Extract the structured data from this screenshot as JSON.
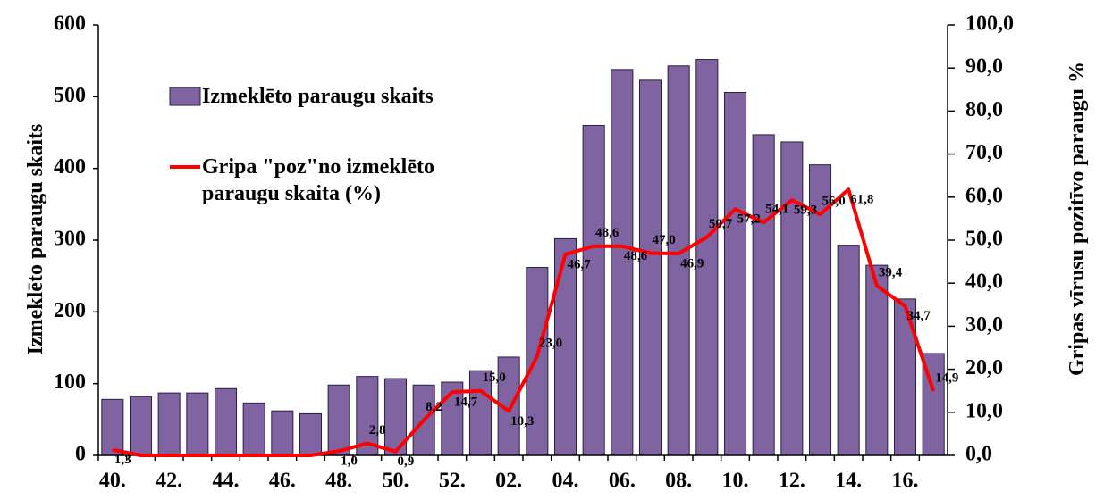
{
  "chart_data": {
    "type": "bar_line",
    "categories": [
      "40.",
      null,
      "42.",
      null,
      "44.",
      null,
      "46.",
      null,
      "48.",
      null,
      "50.",
      null,
      "52.",
      null,
      "02.",
      null,
      "04.",
      null,
      "06.",
      null,
      "08.",
      null,
      "10.",
      null,
      "12.",
      null,
      "14.",
      null,
      "16.",
      null
    ],
    "series": [
      {
        "name": "Izmeklēto paraugu skaits",
        "type": "bar",
        "color": "#8064a2",
        "values": [
          78,
          82,
          87,
          87,
          93,
          73,
          62,
          58,
          98,
          110,
          107,
          98,
          102,
          118,
          137,
          262,
          302,
          460,
          538,
          523,
          543,
          552,
          506,
          447,
          437,
          405,
          293,
          265,
          218,
          142
        ]
      },
      {
        "name": "Gripa \"poz\"no izmeklēto paraugu skaita (%)",
        "type": "line",
        "color": "#ff0000",
        "axis": "y2",
        "values": [
          1.3,
          0,
          0,
          0,
          0,
          0,
          0,
          0,
          1.0,
          2.8,
          0.9,
          8.2,
          14.7,
          15.0,
          10.3,
          23.0,
          46.7,
          48.6,
          48.6,
          47.0,
          46.9,
          50.7,
          57.2,
          54.1,
          59.3,
          56.0,
          61.8,
          39.4,
          34.7,
          14.9
        ],
        "value_labels": [
          "1,3",
          null,
          null,
          null,
          null,
          null,
          null,
          null,
          "1,0",
          "2,8",
          "0,9",
          "8,2",
          "14,7",
          "15,0",
          "10,3",
          "23,0",
          "46,7",
          "48,6",
          "48,6",
          "47,0",
          "46,9",
          "50,7",
          "57,2",
          "54,1",
          "59,3",
          "56,0",
          "61,8",
          "39,4",
          "34,7",
          "14,9"
        ]
      }
    ],
    "y_label": "Izmeklēto paraugu skaits",
    "y2_label": "Gripas vīrusu pozitīvo paraugu %",
    "ylim": [
      0,
      600
    ],
    "yticks": [
      0,
      100,
      200,
      300,
      400,
      500,
      600
    ],
    "y2lim": [
      0,
      100
    ],
    "y2ticks": [
      {
        "value": 0,
        "label": "0,0"
      },
      {
        "value": 10,
        "label": "10,0"
      },
      {
        "value": 20,
        "label": "20,0"
      },
      {
        "value": 30,
        "label": "30,0"
      },
      {
        "value": 40,
        "label": "40,0"
      },
      {
        "value": 50,
        "label": "50,0"
      },
      {
        "value": 60,
        "label": "60,0"
      },
      {
        "value": 70,
        "label": "70,0"
      },
      {
        "value": 80,
        "label": "80,0"
      },
      {
        "value": 90,
        "label": "90,0"
      },
      {
        "value": 100,
        "label": "100,0"
      }
    ],
    "legend": "upper left"
  }
}
